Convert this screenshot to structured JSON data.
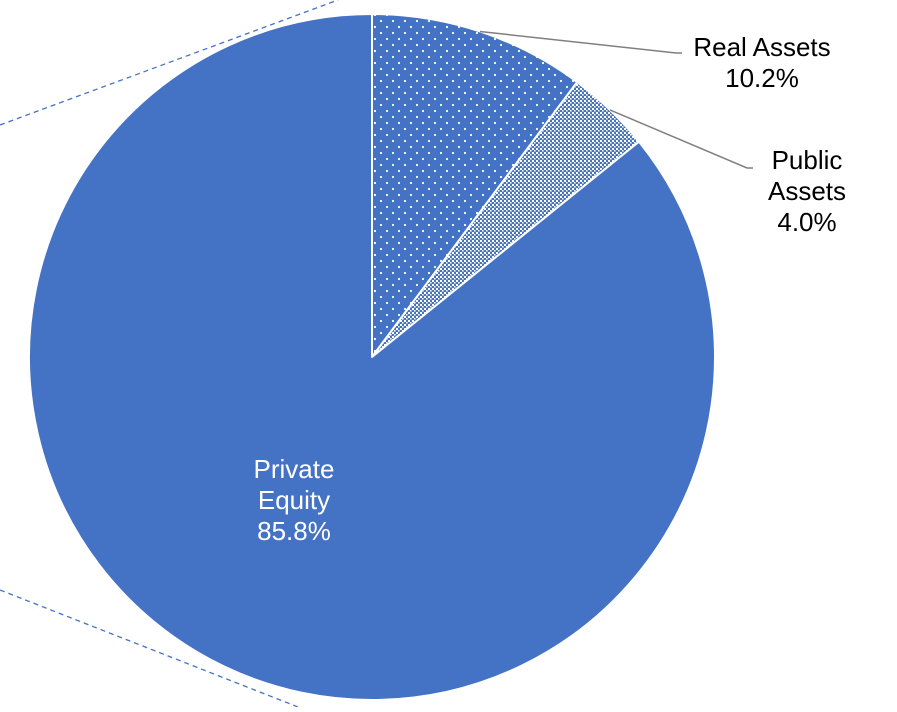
{
  "chart_data": {
    "type": "pie",
    "slices": [
      {
        "label_lines": [
          "Real Assets"
        ],
        "value_label": "10.2%",
        "value": 10.2,
        "fill": "dots"
      },
      {
        "label_lines": [
          "Public",
          "Assets"
        ],
        "value_label": "4.0%",
        "value": 4.0,
        "fill": "fine-dots"
      },
      {
        "label_lines": [
          "Private",
          "Equity"
        ],
        "value_label": "85.8%",
        "value": 85.8,
        "fill": "solid"
      }
    ],
    "start": "12 o'clock",
    "direction": "clockwise",
    "label_placement": [
      "outside-right",
      "outside-right",
      "inside"
    ],
    "connector_lines": [
      true,
      true,
      false
    ],
    "slice_border_color": "#ffffff"
  },
  "colors": {
    "slice": "#4472C4",
    "pattern_dot": "#ffffff",
    "connector": "#7f7f7f",
    "outside_label": "#000000",
    "inside_label": "#ffffff",
    "dashed_guide": "#4472C4"
  }
}
